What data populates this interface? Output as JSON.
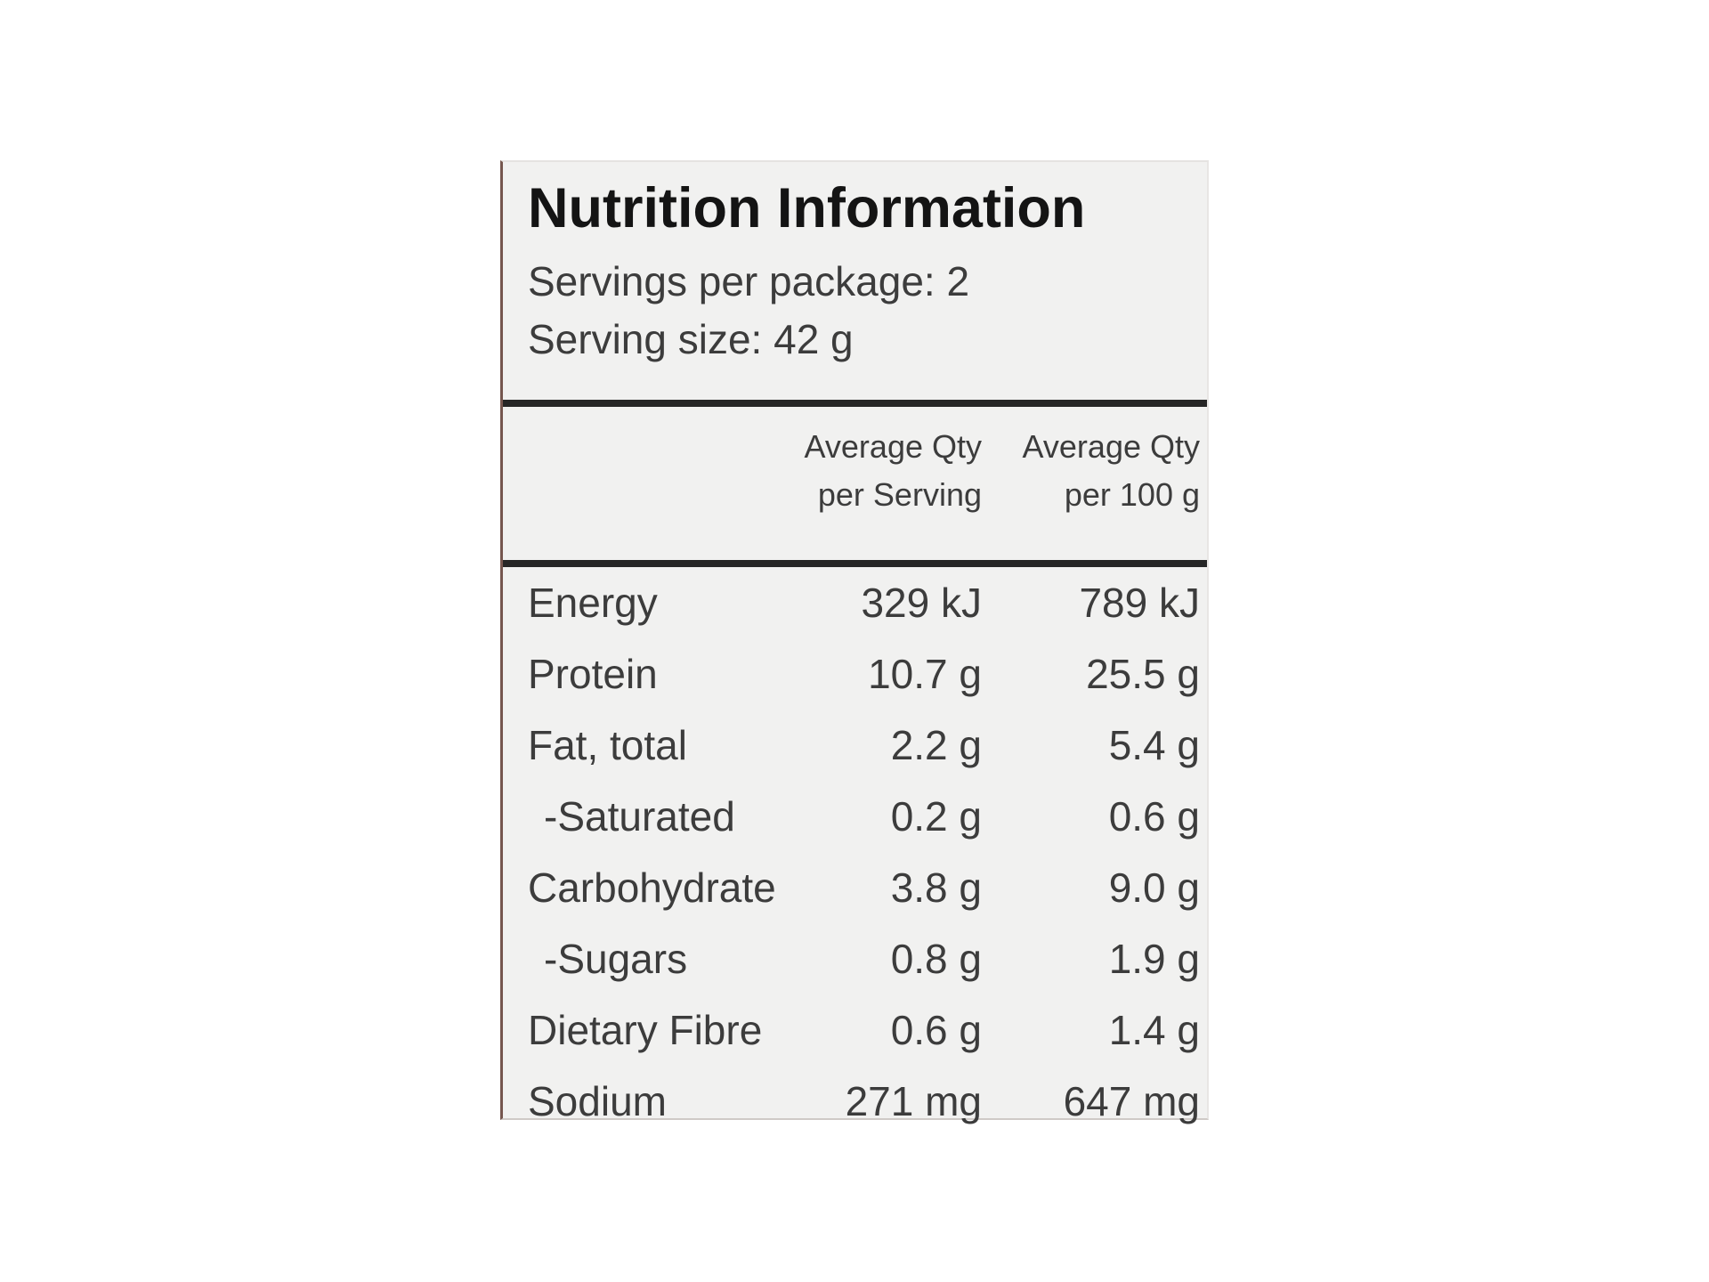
{
  "label": {
    "title": "Nutrition Information",
    "servings_line": "Servings per package: 2",
    "serving_size_line": "Serving size: 42 g",
    "columns": {
      "per_serving_header": "Average Qty\nper Serving",
      "per_100g_header": "Average Qty\nper 100 g"
    },
    "rows": [
      {
        "nutrient": "Energy",
        "per_serving": "329 kJ",
        "per_100g": "789 kJ",
        "indent": false
      },
      {
        "nutrient": "Protein",
        "per_serving": "10.7 g",
        "per_100g": "25.5 g",
        "indent": false
      },
      {
        "nutrient": "Fat, total",
        "per_serving": "2.2 g",
        "per_100g": "5.4 g",
        "indent": false
      },
      {
        "nutrient": "-Saturated",
        "per_serving": "0.2 g",
        "per_100g": "0.6 g",
        "indent": true
      },
      {
        "nutrient": "Carbohydrate",
        "per_serving": "3.8 g",
        "per_100g": "9.0 g",
        "indent": false
      },
      {
        "nutrient": "-Sugars",
        "per_serving": "0.8 g",
        "per_100g": "1.9 g",
        "indent": true
      },
      {
        "nutrient": "Dietary Fibre",
        "per_serving": "0.6 g",
        "per_100g": "1.4 g",
        "indent": false
      },
      {
        "nutrient": "Sodium",
        "per_serving": "271 mg",
        "per_100g": "647 mg",
        "indent": false
      }
    ],
    "colors": {
      "page_bg": "#ffffff",
      "panel_bg": "#f1f1f0",
      "rule": "#262626",
      "title_text": "#141414",
      "body_text": "#3c3c3c",
      "edge_line": "#75564e"
    }
  }
}
